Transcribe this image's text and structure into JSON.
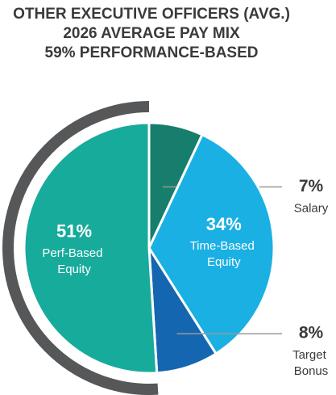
{
  "chart_data": {
    "type": "pie",
    "title": [
      "OTHER EXECUTIVE OFFICERS (AVG.)",
      "2026 AVERAGE PAY MIX",
      "59% PERFORMANCE-BASED"
    ],
    "categories": [
      "Salary",
      "Time-Based Equity",
      "Target Bonus",
      "Perf-Based Equity"
    ],
    "values": [
      7,
      34,
      8,
      51
    ],
    "value_labels": [
      "7%",
      "34%",
      "8%",
      "51%"
    ],
    "colors": [
      "#177d6c",
      "#1ab0e4",
      "#1466b0",
      "#17ab9c"
    ]
  }
}
